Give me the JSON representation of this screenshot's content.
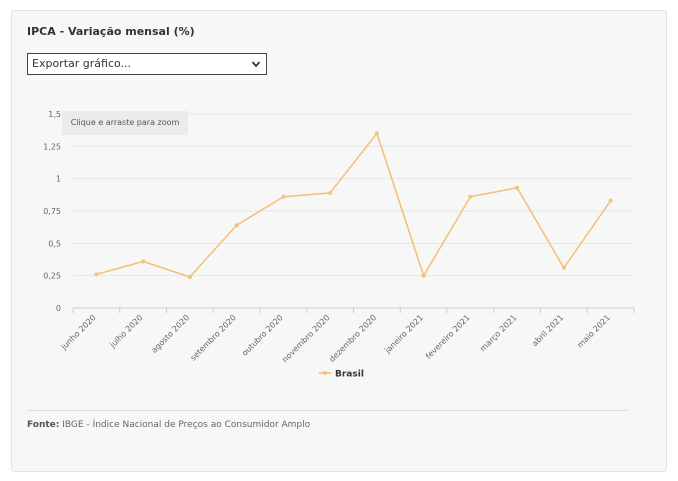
{
  "title": "IPCA - Variação mensal (%)",
  "export": {
    "selected": "Exportar gráfico..."
  },
  "zoom_hint": "Clique e arraste para zoom",
  "source": {
    "label": "Fonte:",
    "text": "IBGE - Índice Nacional de Preços ao Consumidor Amplo"
  },
  "colors": {
    "series": "#f4c27a",
    "grid": "#e6e6e6",
    "axis_text": "#666666"
  },
  "chart_data": {
    "type": "line",
    "categories": [
      "junho 2020",
      "julho 2020",
      "agosto 2020",
      "setembro 2020",
      "outubro 2020",
      "novembro 2020",
      "dezembro 2020",
      "janeiro 2021",
      "fevereiro 2021",
      "março 2021",
      "abril 2021",
      "maio 2021"
    ],
    "series": [
      {
        "name": "Brasil",
        "values": [
          0.26,
          0.36,
          0.24,
          0.64,
          0.86,
          0.89,
          1.35,
          0.25,
          0.86,
          0.93,
          0.31,
          0.83
        ]
      }
    ],
    "y_ticks": [
      "0",
      "0,25",
      "0,5",
      "0,75",
      "1",
      "1,25",
      "1,5"
    ],
    "ylim": [
      0,
      1.5
    ],
    "grid": true,
    "legend_position": "bottom-center"
  }
}
